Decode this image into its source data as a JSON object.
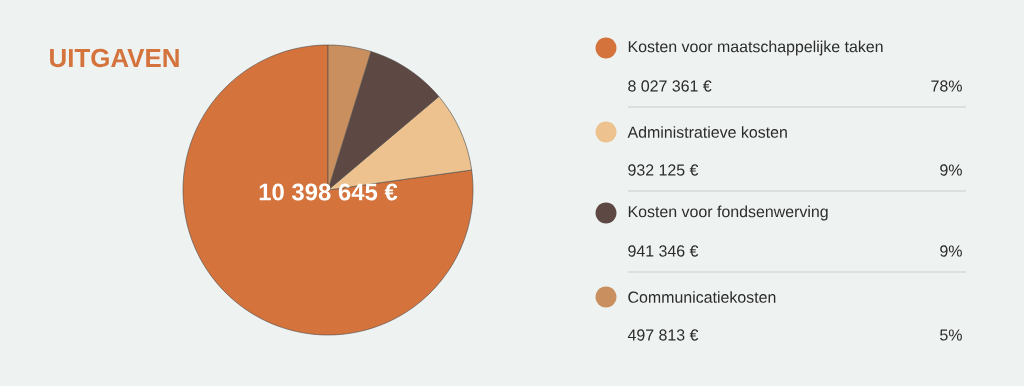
{
  "chart_data": {
    "type": "pie",
    "title": "UITGAVEN",
    "categories": [
      "Kosten voor maatschappelijke taken",
      "Administratieve kosten",
      "Kosten voor fondsenwerving",
      "Communicatiekosten"
    ],
    "values": [
      77.2,
      8.96,
      9.05,
      4.79
    ],
    "colors": [
      "#d4733c",
      "#edc28e",
      "#5e4843",
      "#c98f5e"
    ],
    "annotations": [
      "8 027 361 €",
      "932 125 €",
      "941 346 €",
      "497 813 €",
      "78%",
      "9%",
      "9%",
      "5%",
      "10 398 645 €"
    ],
    "legend": "right"
  }
}
